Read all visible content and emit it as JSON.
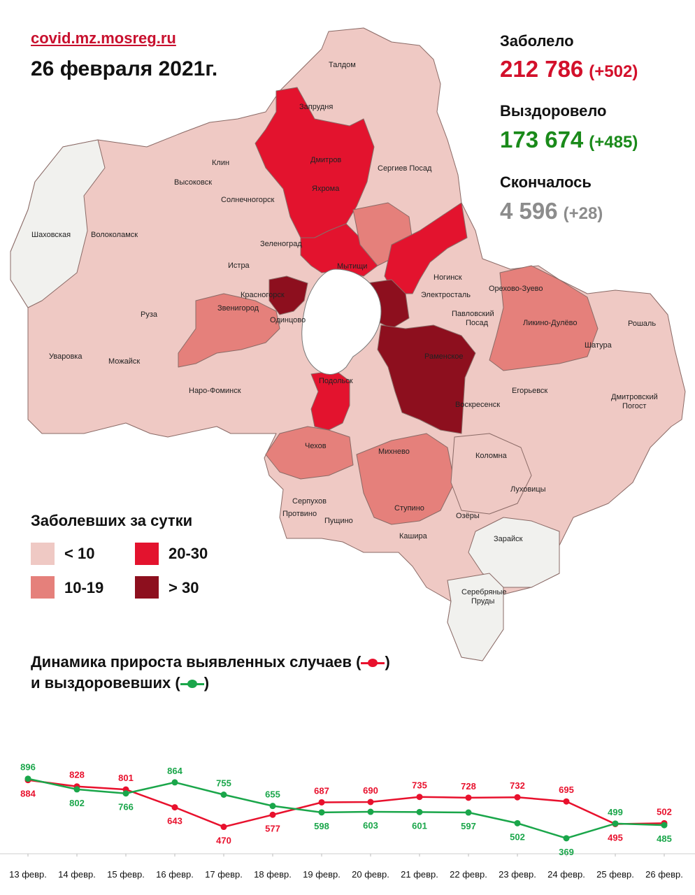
{
  "header": {
    "site": "covid.mz.mosreg.ru",
    "date": "26 февраля 2021г."
  },
  "stats": {
    "infected_label": "Заболело",
    "infected_value": "212 786",
    "infected_delta": "(+502)",
    "recovered_label": "Выздоровело",
    "recovered_value": "173 674",
    "recovered_delta": "(+485)",
    "deaths_label": "Скончалось",
    "deaths_value": "4 596",
    "deaths_delta": "(+28)"
  },
  "colors": {
    "infected": "#d3102b",
    "recovered": "#1a8a1a",
    "deaths": "#8c8c8c",
    "cat_lt10": "#efc9c4",
    "cat_10_19": "#e5807b",
    "cat_20_30": "#e3132e",
    "cat_gt30": "#8d0f1e",
    "none": "#f1f1ee",
    "line_cases": "#e8112d",
    "line_recovered": "#1aa64a"
  },
  "legend": {
    "title": "Заболевших за сутки",
    "items": [
      {
        "label": "< 10",
        "color_key": "cat_lt10"
      },
      {
        "label": "10-19",
        "color_key": "cat_10_19"
      },
      {
        "label": "20-30",
        "color_key": "cat_20_30"
      },
      {
        "label": "> 30",
        "color_key": "cat_gt30"
      }
    ]
  },
  "map_labels": [
    "Талдом",
    "Запрудня",
    "Дмитров",
    "Яхрома",
    "Клин",
    "Высоковск",
    "Сергиев Посад",
    "Солнечногорск",
    "Шаховская",
    "Волоколамск",
    "Зеленоград",
    "Истра",
    "Мытищи",
    "Красногорск",
    "Ногинск",
    "Электросталь",
    "Орехово-Зуево",
    "Звенигород",
    "Одинцово",
    "Павловский Посад",
    "Ликино-Дулёво",
    "Рошаль",
    "Руза",
    "Раменское",
    "Шатура",
    "Уваровка",
    "Можайск",
    "Подольск",
    "Егорьевск",
    "Наро-Фоминск",
    "Воскресенск",
    "Дмитровский Погост",
    "Чехов",
    "Михнево",
    "Коломна",
    "Луховицы",
    "Серпухов",
    "Пущино",
    "Ступино",
    "Озёры",
    "Протвино",
    "Кашира",
    "Зарайск",
    "Серебряные Пруды"
  ],
  "chart_title_line1": "Динамика прироста выявленных случаев (",
  "chart_title_line1_end": ")",
  "chart_title_line2": "и выздоровевших (",
  "chart_title_line2_end": ")",
  "chart_data": {
    "type": "line",
    "x": [
      "13 февр.",
      "14 февр.",
      "15 февр.",
      "16 февр.",
      "17 февр.",
      "18 февр.",
      "19 февр.",
      "20 февр.",
      "21 февр.",
      "22 февр.",
      "23 февр.",
      "24 февр.",
      "25 февр.",
      "26 февр."
    ],
    "series": [
      {
        "key": "cases",
        "values": [
          884,
          828,
          801,
          643,
          470,
          577,
          687,
          690,
          735,
          728,
          732,
          695,
          495,
          502
        ]
      },
      {
        "key": "recovered",
        "values": [
          896,
          802,
          766,
          864,
          755,
          655,
          598,
          603,
          601,
          597,
          502,
          369,
          499,
          485
        ]
      }
    ],
    "title": "Динамика прироста выявленных случаев и выздоровевших",
    "xlabel": "",
    "ylabel": "",
    "ylim": [
      300,
      950
    ]
  }
}
